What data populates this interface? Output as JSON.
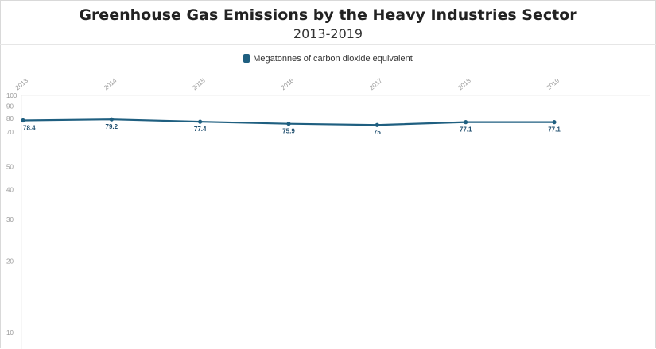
{
  "chart_data": {
    "type": "line",
    "title": "Greenhouse Gas Emissions by the Heavy Industries Sector",
    "subtitle": "2013-2019",
    "x": [
      "2013",
      "2014",
      "2015",
      "2016",
      "2017",
      "2018",
      "2019"
    ],
    "series": [
      {
        "name": "Megatonnes of carbon dioxide equivalent",
        "values": [
          78.4,
          79.2,
          77.4,
          75.9,
          75,
          77.1,
          77.1
        ],
        "labels": [
          "78.4",
          "79.2",
          "77.4",
          "75.9",
          "75",
          "77.1",
          "77.1"
        ],
        "color": "#1f5f80"
      }
    ],
    "y_scale": "log",
    "y_ticks": [
      10,
      20,
      30,
      40,
      50,
      70,
      80,
      90,
      100
    ],
    "ylim": [
      10,
      100
    ],
    "legend": "top-center",
    "grid": "horizontal-top"
  }
}
